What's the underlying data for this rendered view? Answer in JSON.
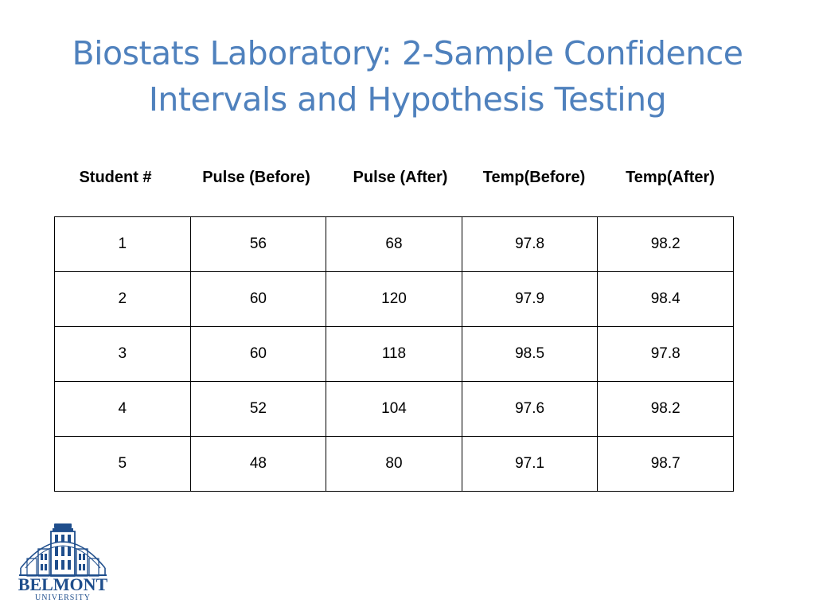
{
  "title": {
    "line1": "Biostats Laboratory: 2-Sample Confidence",
    "line2": "Intervals and Hypothesis Testing"
  },
  "table": {
    "headers": [
      "Student #",
      "Pulse (Before)",
      "Pulse (After)",
      "Temp(Before)",
      "Temp(After)"
    ],
    "rows": [
      [
        "1",
        "56",
        "68",
        "97.8",
        "98.2"
      ],
      [
        "2",
        "60",
        "120",
        "97.9",
        "98.4"
      ],
      [
        "3",
        "60",
        "118",
        "98.5",
        "97.8"
      ],
      [
        "4",
        "52",
        "104",
        "97.6",
        "98.2"
      ],
      [
        "5",
        "48",
        "80",
        "97.1",
        "98.7"
      ]
    ]
  },
  "logo": {
    "name": "BELMONT",
    "subtitle": "UNIVERSITY",
    "color": "#1f4e8c"
  },
  "colors": {
    "title": "#4f81bd",
    "text": "#000000",
    "background": "#ffffff"
  }
}
